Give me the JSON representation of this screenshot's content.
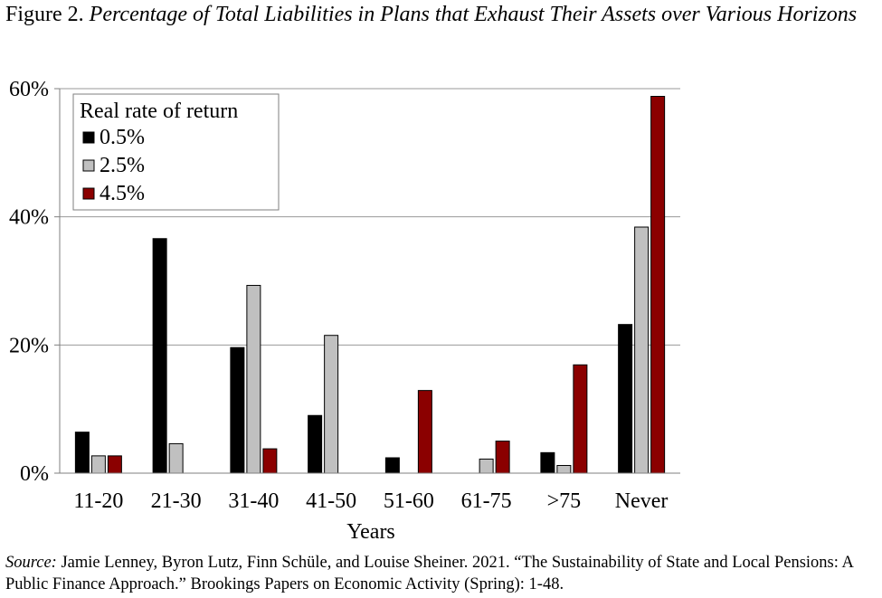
{
  "figure": {
    "label": "Figure 2.",
    "title": "Percentage of Total Liabilities in Plans that Exhaust Their Assets over Various Horizons"
  },
  "source": {
    "label": "Source:",
    "text": "Jamie Lenney, Byron Lutz, Finn Schüle, and Louise Sheiner. 2021. “The Sustainability of State and Local Pensions: A Public Finance Approach.” Brookings Papers on Economic Activity (Spring): 1-48."
  },
  "chart_data": {
    "type": "bar",
    "categories": [
      "11-20",
      "21-30",
      "31-40",
      "41-50",
      "51-60",
      "61-75",
      ">75",
      "Never"
    ],
    "series": [
      {
        "name": "0.5%",
        "color": "#000000",
        "values": [
          6.4,
          36.6,
          19.6,
          9.0,
          2.4,
          0.0,
          3.2,
          23.2
        ]
      },
      {
        "name": "2.5%",
        "color": "#c0c0c0",
        "values": [
          2.7,
          4.6,
          29.3,
          21.5,
          0.0,
          2.2,
          1.2,
          38.4
        ]
      },
      {
        "name": "4.5%",
        "color": "#8b0000",
        "values": [
          2.7,
          0.0,
          3.8,
          0.0,
          12.9,
          5.0,
          16.9,
          58.8
        ]
      }
    ],
    "xlabel": "Years",
    "ylabel": "",
    "ylim": [
      0,
      60
    ],
    "yticks": [
      0,
      20,
      40,
      60
    ],
    "ytick_labels": [
      "0%",
      "20%",
      "40%",
      "60%"
    ],
    "grid": true,
    "legend": {
      "title": "Real rate of return",
      "position": "top-left"
    }
  }
}
